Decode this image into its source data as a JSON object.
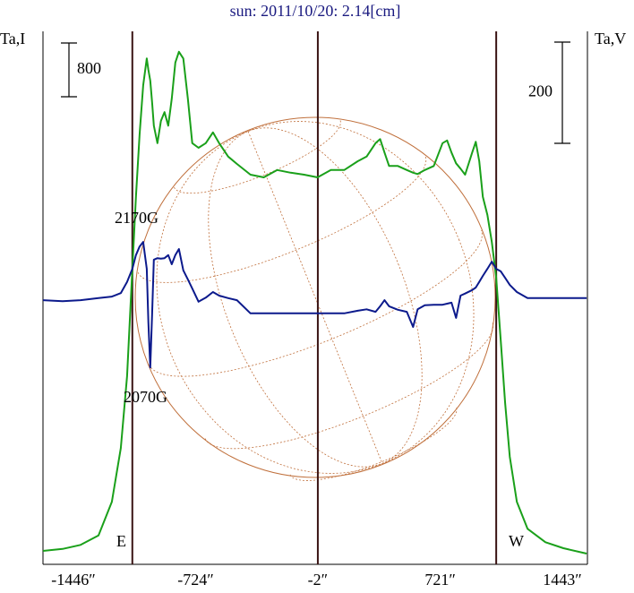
{
  "chart_data": {
    "type": "line",
    "title": "sun: 2011/10/20: 2.14[cm]",
    "x": [
      -1626,
      -1510,
      -1404,
      -1298,
      -1219,
      -1166,
      -1129,
      -1098,
      -1077,
      -1055,
      -1034,
      -1013,
      -1003,
      -992,
      -981,
      -971,
      -950,
      -929,
      -908,
      -886,
      -865,
      -844,
      -823,
      -797,
      -770,
      -744,
      -707,
      -664,
      -622,
      -585,
      -532,
      -480,
      -400,
      -321,
      -242,
      -163,
      -83,
      -4,
      75,
      154,
      234,
      286,
      339,
      366,
      392,
      419,
      471,
      524,
      561,
      588,
      630,
      683,
      735,
      762,
      788,
      815,
      841,
      868,
      910,
      931,
      952,
      973,
      1000,
      1026,
      1052,
      1079,
      1105,
      1132,
      1174,
      1237,
      1343,
      1449,
      1586
    ],
    "series": [
      {
        "name": "Ta,I",
        "color": "#1aa01a",
        "values": [
          200,
          230,
          290,
          430,
          930,
          1730,
          2800,
          4400,
          5470,
          6400,
          7130,
          7530,
          7360,
          7200,
          6870,
          6530,
          6270,
          6600,
          6730,
          6530,
          6930,
          7470,
          7630,
          7530,
          6930,
          6270,
          6200,
          6270,
          6430,
          6270,
          6070,
          5960,
          5800,
          5760,
          5870,
          5830,
          5800,
          5760,
          5870,
          5870,
          6000,
          6070,
          6270,
          6330,
          6130,
          5930,
          5930,
          5870,
          5830,
          5810,
          5870,
          5930,
          6270,
          6310,
          6130,
          5970,
          5890,
          5800,
          6130,
          6290,
          6000,
          5470,
          5200,
          4800,
          4270,
          3330,
          2400,
          1600,
          930,
          530,
          330,
          240,
          160
        ]
      },
      {
        "name": "Ta,V",
        "color": "#0c1a8c",
        "axis": "y2",
        "values": [
          -9,
          -11,
          -9,
          -5,
          -2,
          5,
          27,
          53,
          80,
          97,
          106,
          53,
          -53,
          -142,
          -35,
          71,
          74,
          73,
          74,
          80,
          62,
          80,
          92,
          50,
          32,
          14,
          -12,
          -4,
          7,
          0,
          -5,
          -9,
          -35,
          -35,
          -35,
          -35,
          -35,
          -35,
          -35,
          -35,
          -30,
          -27,
          -32,
          -21,
          -9,
          -21,
          -28,
          -32,
          -62,
          -27,
          -19,
          -18,
          -18,
          -16,
          -14,
          -44,
          0,
          4,
          11,
          16,
          27,
          39,
          53,
          67,
          53,
          48,
          35,
          21,
          7,
          -5,
          -5,
          -5,
          -5
        ]
      }
    ],
    "xlim": [
      -1626,
      1591
    ],
    "xticks": [
      {
        "value": -1446,
        "label": "-1446″"
      },
      {
        "value": -724,
        "label": "-724″"
      },
      {
        "value": -2,
        "label": "-2″"
      },
      {
        "value": 721,
        "label": "721″"
      },
      {
        "value": 1443,
        "label": "1443″"
      }
    ],
    "ylim": [
      0,
      8000
    ],
    "y2lim": [
      -531,
      531
    ],
    "scale_bar_left": 800,
    "scale_bar_right": 200,
    "vertical_lines": [
      -1098,
      -2,
      1052
    ],
    "annotations": [
      "2170G",
      "2070G",
      "E",
      "W"
    ]
  }
}
